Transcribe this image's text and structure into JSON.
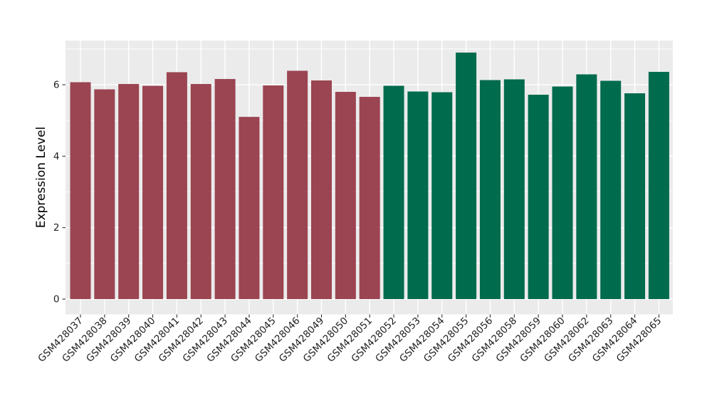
{
  "figure": {
    "background": "#FFFFFF",
    "panel_background": "#EBEBEB",
    "grid_color": "#FFFFFF",
    "tick_mark_color": "#333333",
    "axis_text_color": "#1F1F1F",
    "axis_title_color": "#000000"
  },
  "chart_data": {
    "type": "bar",
    "title": "",
    "xlabel": "",
    "ylabel": "Expression Level",
    "categories": [
      "GSM428037",
      "GSM428038",
      "GSM428039",
      "GSM428040",
      "GSM428041",
      "GSM428042",
      "GSM428043",
      "GSM428044",
      "GSM428045",
      "GSM428046",
      "GSM428049",
      "GSM428050",
      "GSM428051",
      "GSM428052",
      "GSM428053",
      "GSM428054",
      "GSM428055",
      "GSM428056",
      "GSM428058",
      "GSM428059",
      "GSM428060",
      "GSM428062",
      "GSM428063",
      "GSM428064",
      "GSM428065"
    ],
    "values": [
      6.07,
      5.87,
      6.02,
      5.97,
      6.35,
      6.02,
      6.16,
      5.1,
      5.98,
      6.39,
      6.12,
      5.8,
      5.66,
      5.97,
      5.81,
      5.79,
      6.9,
      6.13,
      6.15,
      5.72,
      5.95,
      6.29,
      6.11,
      5.76,
      6.36
    ],
    "bar_groups": [
      "group1",
      "group1",
      "group1",
      "group1",
      "group1",
      "group1",
      "group1",
      "group1",
      "group1",
      "group1",
      "group1",
      "group1",
      "group1",
      "group2",
      "group2",
      "group2",
      "group2",
      "group2",
      "group2",
      "group2",
      "group2",
      "group2",
      "group2",
      "group2",
      "group2"
    ],
    "group_colors": {
      "group1": "#9B4452",
      "group2": "#016B4D"
    },
    "yticks": [
      0,
      2,
      4,
      6
    ],
    "yminorticks": [
      1,
      3,
      5,
      7
    ],
    "ylim": [
      0,
      7.25
    ],
    "xtick_angle": 45,
    "grid": true,
    "legend": "none"
  }
}
